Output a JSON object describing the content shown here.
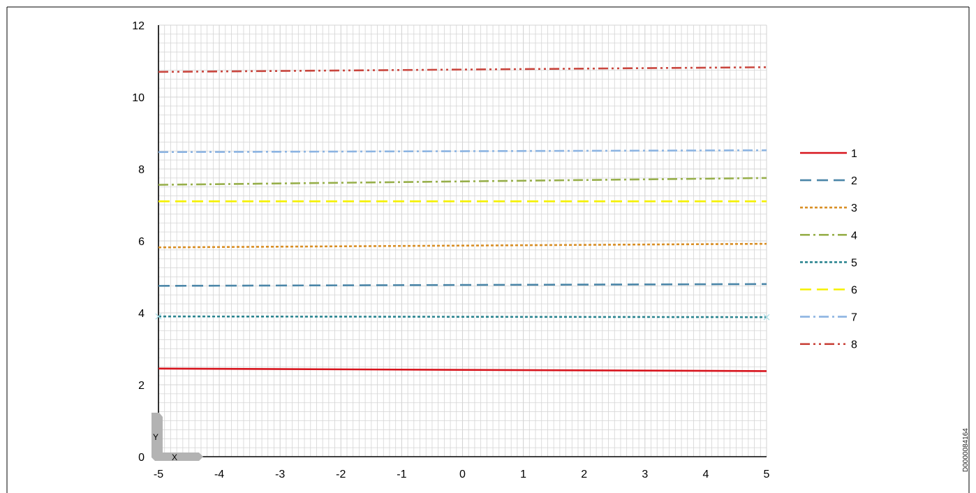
{
  "document_code": "D0000084164",
  "axis_corner_labels": {
    "x": "X",
    "y": "Y"
  },
  "colors": {
    "grid": "#d4d4d4",
    "axis": "#000000",
    "frame": "#000000",
    "corner_icon": "#b3b3b3",
    "marker": "#a8dbe4"
  },
  "chart_data": {
    "type": "line",
    "title": "",
    "xlabel": "",
    "ylabel": "",
    "xlim": [
      -5,
      5
    ],
    "ylim": [
      0,
      12
    ],
    "x_ticks": [
      "-5",
      "-4",
      "-3",
      "-2",
      "-1",
      "0",
      "1",
      "2",
      "3",
      "4",
      "5"
    ],
    "y_ticks": [
      "0",
      "2",
      "4",
      "6",
      "8",
      "10",
      "12"
    ],
    "grid": true,
    "legend_position": "right",
    "x": [
      -5,
      5
    ],
    "series": [
      {
        "name": "1",
        "values": [
          2.45,
          2.38
        ],
        "color": "#d7141d",
        "dash": "solid"
      },
      {
        "name": "2",
        "values": [
          4.75,
          4.8
        ],
        "color": "#4b86a8",
        "dash": "long-dash"
      },
      {
        "name": "3",
        "values": [
          5.82,
          5.92
        ],
        "color": "#d98f26",
        "dash": "dot"
      },
      {
        "name": "4",
        "values": [
          7.56,
          7.75
        ],
        "color": "#97af4a",
        "dash": "dash-dot"
      },
      {
        "name": "5",
        "values": [
          3.9,
          3.88
        ],
        "color": "#2b8590",
        "dash": "dot"
      },
      {
        "name": "6",
        "values": [
          7.1,
          7.1
        ],
        "color": "#f5f100",
        "dash": "long-dash"
      },
      {
        "name": "7",
        "values": [
          8.47,
          8.52
        ],
        "color": "#8cb4e2",
        "dash": "dash-dot"
      },
      {
        "name": "8",
        "values": [
          10.7,
          10.83
        ],
        "color": "#c9463e",
        "dash": "dash-dot-dot"
      }
    ]
  }
}
